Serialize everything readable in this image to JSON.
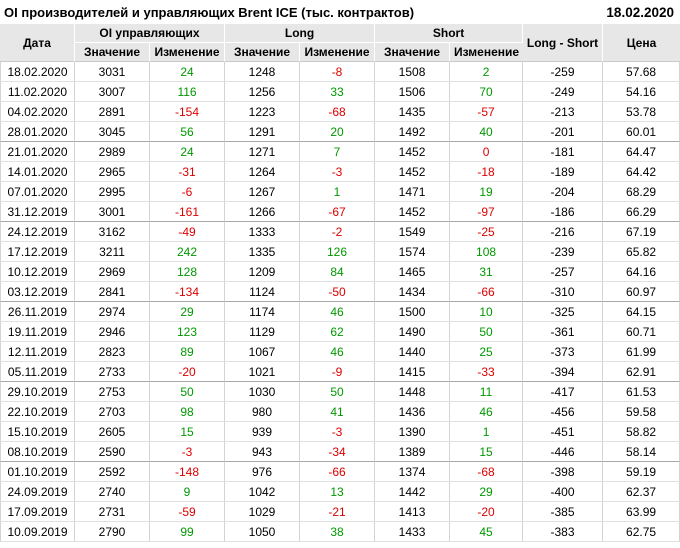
{
  "page": {
    "title": "OI производителей и управляющих Brent ICE (тыс. контрактов)",
    "report_date": "18.02.2020"
  },
  "colors": {
    "positive_change": "#009900",
    "negative_change": "#dd0000",
    "header_bg": "#e7e7e7"
  },
  "columns": {
    "date": "Дата",
    "oi_group": "OI управляющих",
    "long_group": "Long",
    "short_group": "Short",
    "value": "Значение",
    "change": "Изменение",
    "long_short": "Long - Short",
    "price": "Цена"
  },
  "chart_data": {
    "type": "table",
    "title": "OI производителей и управляющих Brent ICE (тыс. контрактов)",
    "as_of_date": "18.02.2020",
    "column_groups": [
      "Дата",
      "OI управляющих",
      "Long",
      "Short",
      "Long - Short",
      "Цена"
    ],
    "sub_columns": [
      "Значение",
      "Изменение"
    ],
    "group_separator_after_rows": [
      4,
      8,
      12,
      16,
      20
    ],
    "rows": [
      {
        "date": "18.02.2020",
        "oi": 3031,
        "oi_chg": 24,
        "long": 1248,
        "long_chg": -8,
        "short": 1508,
        "short_chg": 2,
        "long_short": -259,
        "price": "57.68",
        "dirs": [
          "up",
          "down",
          "up"
        ]
      },
      {
        "date": "11.02.2020",
        "oi": 3007,
        "oi_chg": 116,
        "long": 1256,
        "long_chg": 33,
        "short": 1506,
        "short_chg": 70,
        "long_short": -249,
        "price": "54.16",
        "dirs": [
          "up",
          "up",
          "up"
        ]
      },
      {
        "date": "04.02.2020",
        "oi": 2891,
        "oi_chg": -154,
        "long": 1223,
        "long_chg": -68,
        "short": 1435,
        "short_chg": -57,
        "long_short": -213,
        "price": "53.78",
        "dirs": [
          "down",
          "down",
          "down"
        ]
      },
      {
        "date": "28.01.2020",
        "oi": 3045,
        "oi_chg": 56,
        "long": 1291,
        "long_chg": 20,
        "short": 1492,
        "short_chg": 40,
        "long_short": -201,
        "price": "60.01",
        "dirs": [
          "up",
          "up",
          "up"
        ]
      },
      {
        "date": "21.01.2020",
        "oi": 2989,
        "oi_chg": 24,
        "long": 1271,
        "long_chg": 7,
        "short": 1452,
        "short_chg": 0,
        "long_short": -181,
        "price": "64.47",
        "dirs": [
          "up",
          "up",
          "down"
        ]
      },
      {
        "date": "14.01.2020",
        "oi": 2965,
        "oi_chg": -31,
        "long": 1264,
        "long_chg": -3,
        "short": 1452,
        "short_chg": -18,
        "long_short": -189,
        "price": "64.42",
        "dirs": [
          "down",
          "down",
          "down"
        ]
      },
      {
        "date": "07.01.2020",
        "oi": 2995,
        "oi_chg": -6,
        "long": 1267,
        "long_chg": 1,
        "short": 1471,
        "short_chg": 19,
        "long_short": -204,
        "price": "68.29",
        "dirs": [
          "down",
          "up",
          "up"
        ]
      },
      {
        "date": "31.12.2019",
        "oi": 3001,
        "oi_chg": -161,
        "long": 1266,
        "long_chg": -67,
        "short": 1452,
        "short_chg": -97,
        "long_short": -186,
        "price": "66.29",
        "dirs": [
          "down",
          "down",
          "down"
        ]
      },
      {
        "date": "24.12.2019",
        "oi": 3162,
        "oi_chg": -49,
        "long": 1333,
        "long_chg": -2,
        "short": 1549,
        "short_chg": -25,
        "long_short": -216,
        "price": "67.19",
        "dirs": [
          "down",
          "down",
          "down"
        ]
      },
      {
        "date": "17.12.2019",
        "oi": 3211,
        "oi_chg": 242,
        "long": 1335,
        "long_chg": 126,
        "short": 1574,
        "short_chg": 108,
        "long_short": -239,
        "price": "65.82",
        "dirs": [
          "up",
          "up",
          "up"
        ]
      },
      {
        "date": "10.12.2019",
        "oi": 2969,
        "oi_chg": 128,
        "long": 1209,
        "long_chg": 84,
        "short": 1465,
        "short_chg": 31,
        "long_short": -257,
        "price": "64.16",
        "dirs": [
          "up",
          "up",
          "up"
        ]
      },
      {
        "date": "03.12.2019",
        "oi": 2841,
        "oi_chg": -134,
        "long": 1124,
        "long_chg": -50,
        "short": 1434,
        "short_chg": -66,
        "long_short": -310,
        "price": "60.97",
        "dirs": [
          "down",
          "down",
          "down"
        ]
      },
      {
        "date": "26.11.2019",
        "oi": 2974,
        "oi_chg": 29,
        "long": 1174,
        "long_chg": 46,
        "short": 1500,
        "short_chg": 10,
        "long_short": -325,
        "price": "64.15",
        "dirs": [
          "up",
          "up",
          "up"
        ]
      },
      {
        "date": "19.11.2019",
        "oi": 2946,
        "oi_chg": 123,
        "long": 1129,
        "long_chg": 62,
        "short": 1490,
        "short_chg": 50,
        "long_short": -361,
        "price": "60.71",
        "dirs": [
          "up",
          "up",
          "up"
        ]
      },
      {
        "date": "12.11.2019",
        "oi": 2823,
        "oi_chg": 89,
        "long": 1067,
        "long_chg": 46,
        "short": 1440,
        "short_chg": 25,
        "long_short": -373,
        "price": "61.99",
        "dirs": [
          "up",
          "up",
          "up"
        ]
      },
      {
        "date": "05.11.2019",
        "oi": 2733,
        "oi_chg": -20,
        "long": 1021,
        "long_chg": -9,
        "short": 1415,
        "short_chg": -33,
        "long_short": -394,
        "price": "62.91",
        "dirs": [
          "down",
          "down",
          "down"
        ]
      },
      {
        "date": "29.10.2019",
        "oi": 2753,
        "oi_chg": 50,
        "long": 1030,
        "long_chg": 50,
        "short": 1448,
        "short_chg": 11,
        "long_short": -417,
        "price": "61.53",
        "dirs": [
          "up",
          "up",
          "up"
        ]
      },
      {
        "date": "22.10.2019",
        "oi": 2703,
        "oi_chg": 98,
        "long": 980,
        "long_chg": 41,
        "short": 1436,
        "short_chg": 46,
        "long_short": -456,
        "price": "59.58",
        "dirs": [
          "up",
          "up",
          "up"
        ]
      },
      {
        "date": "15.10.2019",
        "oi": 2605,
        "oi_chg": 15,
        "long": 939,
        "long_chg": -3,
        "short": 1390,
        "short_chg": 1,
        "long_short": -451,
        "price": "58.82",
        "dirs": [
          "up",
          "down",
          "up"
        ]
      },
      {
        "date": "08.10.2019",
        "oi": 2590,
        "oi_chg": -3,
        "long": 943,
        "long_chg": -34,
        "short": 1389,
        "short_chg": 15,
        "long_short": -446,
        "price": "58.14",
        "dirs": [
          "down",
          "down",
          "up"
        ]
      },
      {
        "date": "01.10.2019",
        "oi": 2592,
        "oi_chg": -148,
        "long": 976,
        "long_chg": -66,
        "short": 1374,
        "short_chg": -68,
        "long_short": -398,
        "price": "59.19",
        "dirs": [
          "down",
          "down",
          "down"
        ]
      },
      {
        "date": "24.09.2019",
        "oi": 2740,
        "oi_chg": 9,
        "long": 1042,
        "long_chg": 13,
        "short": 1442,
        "short_chg": 29,
        "long_short": -400,
        "price": "62.37",
        "dirs": [
          "up",
          "up",
          "up"
        ]
      },
      {
        "date": "17.09.2019",
        "oi": 2731,
        "oi_chg": -59,
        "long": 1029,
        "long_chg": -21,
        "short": 1413,
        "short_chg": -20,
        "long_short": -385,
        "price": "63.99",
        "dirs": [
          "down",
          "down",
          "down"
        ]
      },
      {
        "date": "10.09.2019",
        "oi": 2790,
        "oi_chg": 99,
        "long": 1050,
        "long_chg": 38,
        "short": 1433,
        "short_chg": 45,
        "long_short": -383,
        "price": "62.75",
        "dirs": [
          "up",
          "up",
          "up"
        ]
      }
    ]
  }
}
